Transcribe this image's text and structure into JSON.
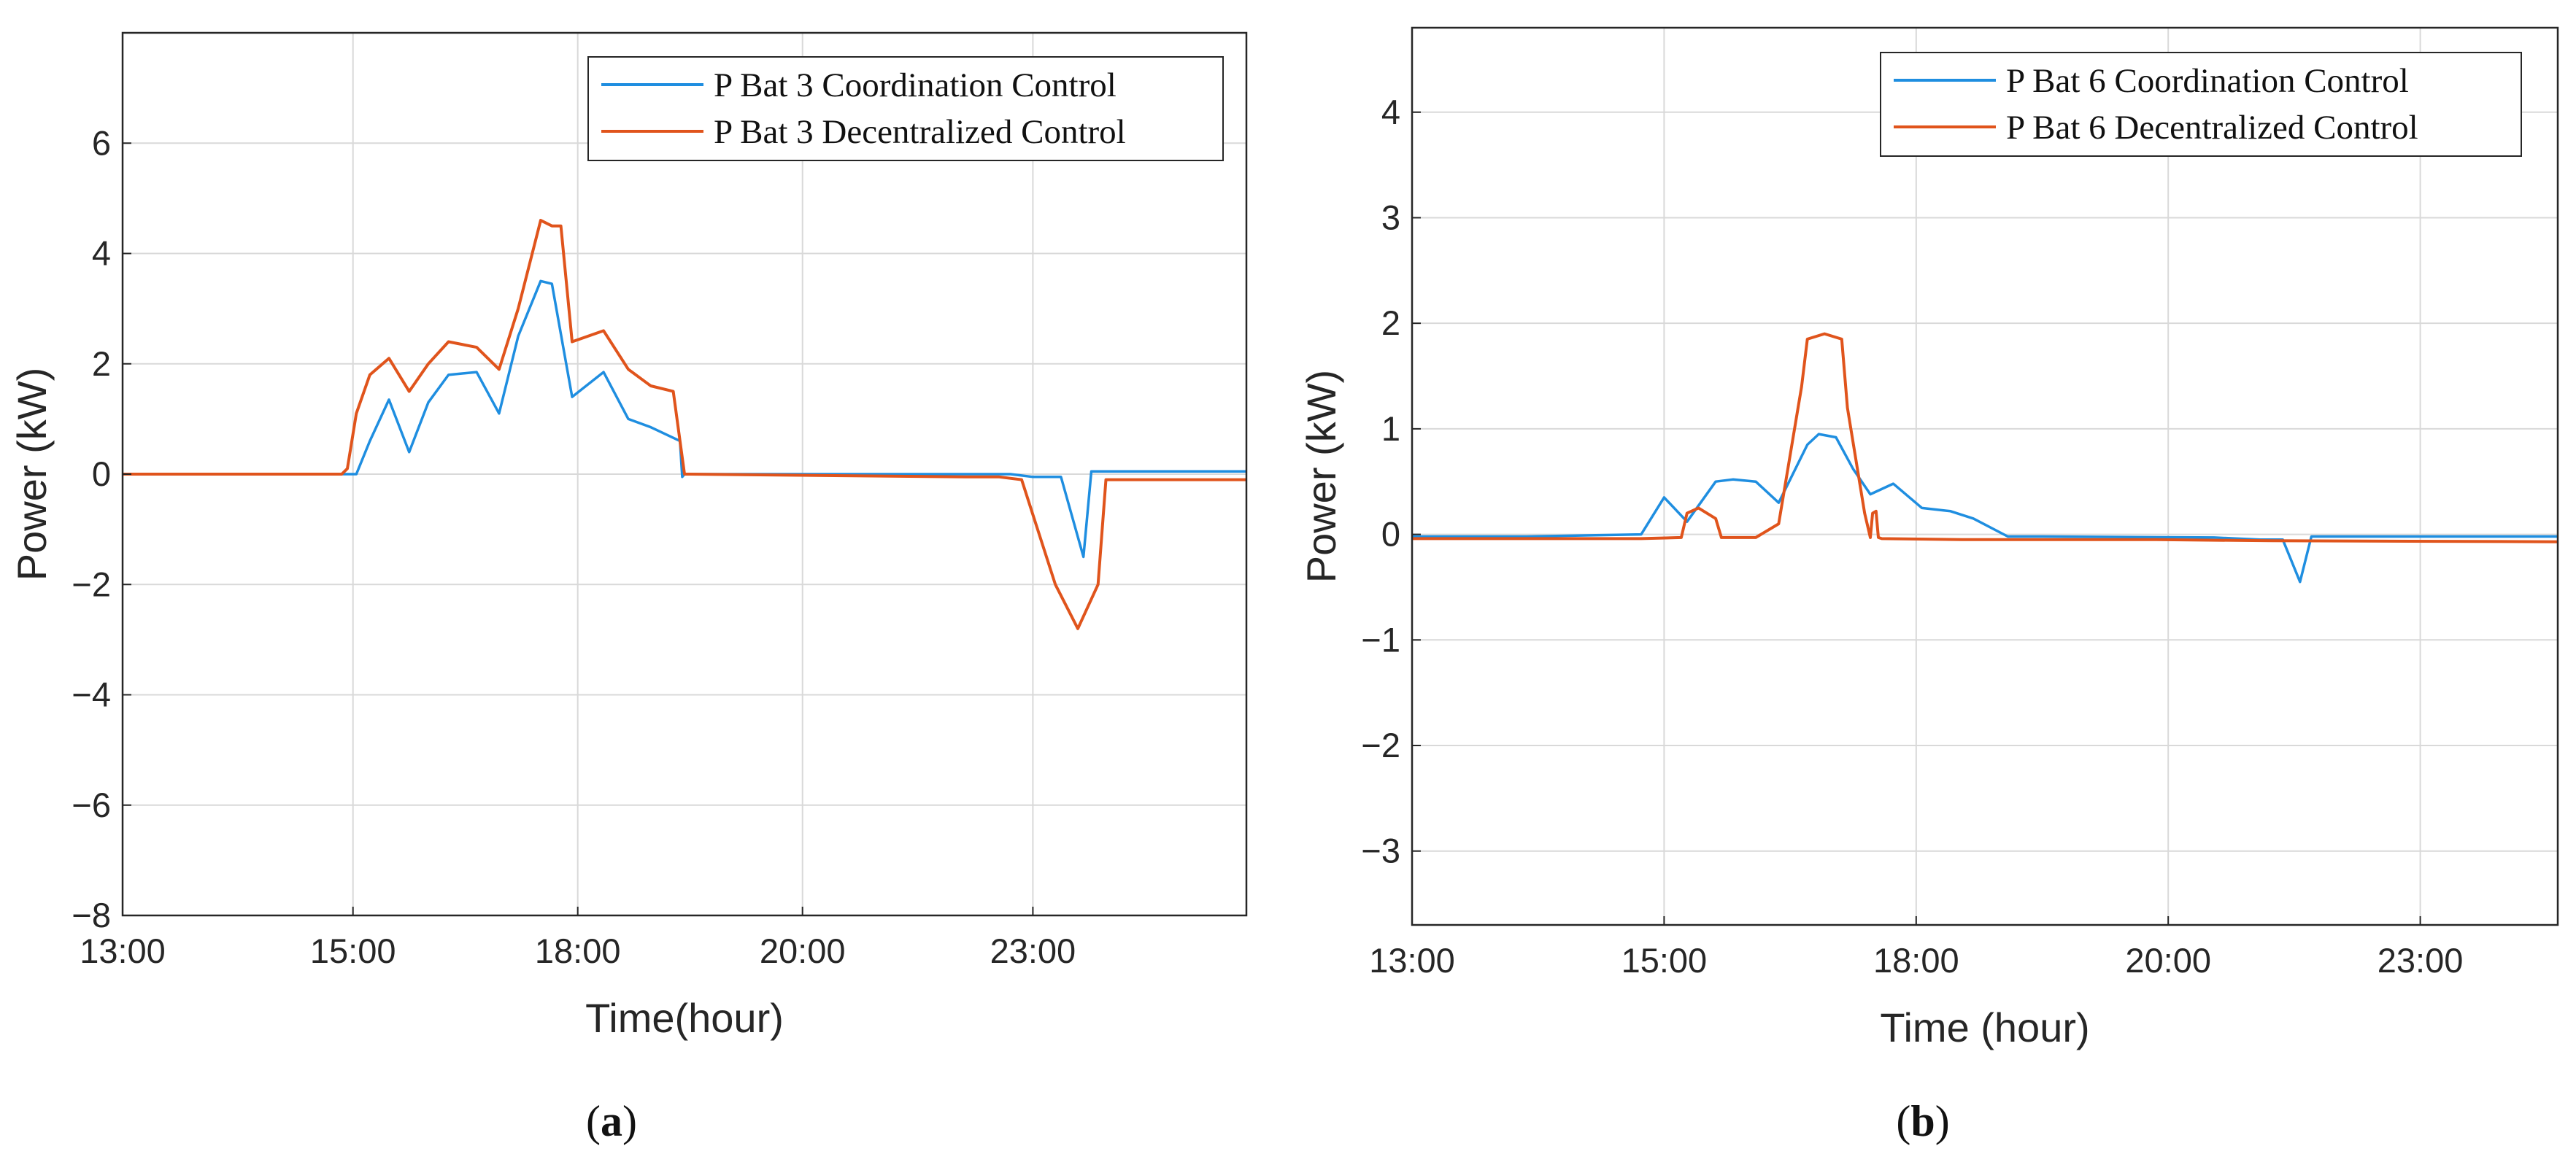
{
  "colors": {
    "coordination": "#1f8ee0",
    "decentralized": "#e0541c",
    "grid": "#d9d9d9",
    "axis": "#262626"
  },
  "chart_data": [
    {
      "type": "line",
      "panel_label": "a",
      "xlabel": "Time(hour)",
      "ylabel": "Power (kW)",
      "x_ticks": [
        "13:00",
        "15:00",
        "18:00",
        "20:00",
        "23:00"
      ],
      "y_ticks": [
        -8,
        -6,
        -4,
        -2,
        0,
        2,
        4,
        6
      ],
      "y_tick_labels": [
        "−8",
        "−6",
        "−4",
        "−2",
        "0",
        "2",
        "4",
        "6"
      ],
      "xlim": [
        0,
        10
      ],
      "ylim": [
        -8,
        8
      ],
      "grid": true,
      "legend_position": "top-right",
      "series": [
        {
          "name": "P Bat 3 Coordination Control",
          "color_key": "coordination",
          "x": [
            0,
            2.0,
            2.08,
            2.2,
            2.37,
            2.55,
            2.72,
            2.9,
            3.15,
            3.35,
            3.52,
            3.72,
            3.82,
            4.0,
            4.28,
            4.5,
            4.7,
            4.96,
            4.98,
            5.0,
            5.2,
            7.5,
            7.9,
            8.1,
            8.35,
            8.55,
            8.62,
            10
          ],
          "y": [
            0,
            0,
            0.0,
            0.6,
            1.35,
            0.4,
            1.3,
            1.8,
            1.85,
            1.1,
            2.5,
            3.5,
            3.45,
            1.4,
            1.85,
            1.0,
            0.85,
            0.6,
            -0.05,
            0,
            0,
            0,
            0,
            -0.05,
            -0.05,
            -1.5,
            0.05,
            0.05
          ]
        },
        {
          "name": "P Bat 3 Decentralized Control",
          "color_key": "decentralized",
          "x": [
            0,
            1.95,
            2.0,
            2.08,
            2.2,
            2.37,
            2.55,
            2.72,
            2.9,
            3.15,
            3.35,
            3.52,
            3.72,
            3.82,
            3.9,
            4.0,
            4.28,
            4.5,
            4.7,
            4.9,
            5.0,
            5.05,
            7.5,
            7.52,
            7.8,
            8.0,
            8.3,
            8.5,
            8.68,
            8.75,
            10
          ],
          "y": [
            0,
            0,
            0.1,
            1.1,
            1.8,
            2.1,
            1.5,
            2.0,
            2.4,
            2.3,
            1.9,
            3.0,
            4.6,
            4.5,
            4.5,
            2.4,
            2.6,
            1.9,
            1.6,
            1.5,
            0,
            0,
            -0.05,
            -0.05,
            -0.05,
            -0.1,
            -2.0,
            -2.8,
            -2.0,
            -0.1,
            -0.1
          ]
        }
      ]
    },
    {
      "type": "line",
      "panel_label": "b",
      "xlabel": "Time (hour)",
      "ylabel": "Power (kW)",
      "x_ticks": [
        "13:00",
        "15:00",
        "18:00",
        "20:00",
        "23:00"
      ],
      "y_ticks": [
        -3,
        -2,
        -1,
        0,
        1,
        2,
        3,
        4
      ],
      "y_tick_labels": [
        "−3",
        "−2",
        "−1",
        "0",
        "1",
        "2",
        "3",
        "4"
      ],
      "xlim": [
        0,
        10
      ],
      "ylim": [
        -3.7,
        4.8
      ],
      "grid": true,
      "legend_position": "top-right",
      "series": [
        {
          "name": "P Bat 6 Coordination Control",
          "color_key": "coordination",
          "x": [
            0,
            1.0,
            2.0,
            2.2,
            2.4,
            2.65,
            2.8,
            3.0,
            3.2,
            3.45,
            3.55,
            3.7,
            3.85,
            4.0,
            4.2,
            4.45,
            4.7,
            4.9,
            5.2,
            5.5,
            7.0,
            7.4,
            7.6,
            7.75,
            7.85,
            10
          ],
          "y": [
            -0.02,
            -0.02,
            0.0,
            0.35,
            0.12,
            0.5,
            0.52,
            0.5,
            0.3,
            0.85,
            0.95,
            0.92,
            0.62,
            0.38,
            0.48,
            0.25,
            0.22,
            0.15,
            -0.02,
            -0.02,
            -0.03,
            -0.05,
            -0.05,
            -0.45,
            -0.02,
            -0.02
          ]
        },
        {
          "name": "P Bat 6 Decentralized Control",
          "color_key": "decentralized",
          "x": [
            0,
            1.8,
            2.0,
            2.35,
            2.4,
            2.5,
            2.65,
            2.7,
            3.0,
            3.2,
            3.4,
            3.45,
            3.6,
            3.75,
            3.8,
            3.95,
            4.0,
            4.02,
            4.05,
            4.07,
            4.1,
            4.8,
            5.5,
            6.5,
            7.5,
            10
          ],
          "y": [
            -0.04,
            -0.04,
            -0.04,
            -0.03,
            0.2,
            0.25,
            0.15,
            -0.03,
            -0.03,
            0.1,
            1.4,
            1.85,
            1.9,
            1.85,
            1.2,
            0.2,
            -0.03,
            0.2,
            0.22,
            -0.03,
            -0.04,
            -0.05,
            -0.05,
            -0.05,
            -0.06,
            -0.07
          ]
        }
      ]
    }
  ]
}
